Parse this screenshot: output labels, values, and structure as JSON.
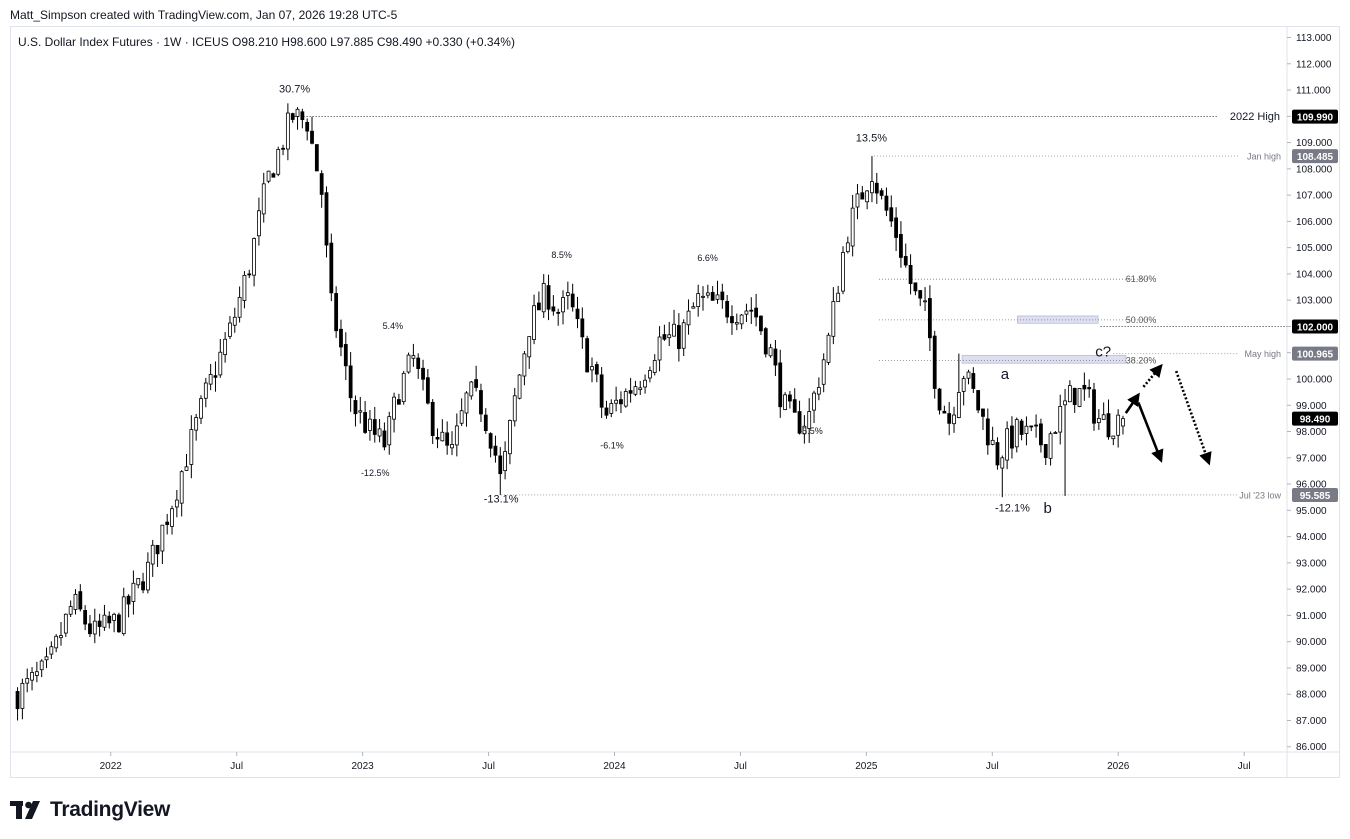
{
  "header": {
    "credit": "Matt_Simpson created with TradingView.com, Jan 07, 2026 19:28 UTC-5",
    "legend": "U.S. Dollar Index Futures · 1W · ICEUS  O98.210  H98.600  L97.885  C98.490  +0.330 (+0.34%)"
  },
  "brand": {
    "name": "TradingView",
    "icon": "tradingview-logo-icon"
  },
  "colors": {
    "up": "#ffffff",
    "down": "#000000",
    "line": "#131722",
    "badge_dark": "#000000",
    "badge_grey": "#787b86",
    "fib_zone": "#d1d4ec"
  },
  "chart_data": {
    "type": "candlestick",
    "timeframe": "1W",
    "ylim": [
      85.8,
      113.4
    ],
    "y_ticks": [
      86.0,
      87.0,
      88.0,
      89.0,
      90.0,
      91.0,
      92.0,
      93.0,
      94.0,
      95.0,
      96.0,
      97.0,
      98.0,
      99.0,
      100.0,
      101.0,
      102.0,
      103.0,
      104.0,
      105.0,
      106.0,
      107.0,
      108.0,
      109.0,
      110.0,
      111.0,
      112.0,
      113.0
    ],
    "x_ticks": [
      {
        "label": "2022",
        "t": 2022.0
      },
      {
        "label": "Jul",
        "t": 2022.5
      },
      {
        "label": "2023",
        "t": 2023.0
      },
      {
        "label": "Jul",
        "t": 2023.5
      },
      {
        "label": "2024",
        "t": 2024.0
      },
      {
        "label": "Jul",
        "t": 2024.5
      },
      {
        "label": "2025",
        "t": 2025.0
      },
      {
        "label": "Jul",
        "t": 2025.5
      },
      {
        "label": "2026",
        "t": 2026.0
      },
      {
        "label": "Jul",
        "t": 2026.5
      }
    ],
    "path_points": [
      [
        2021.63,
        88.0
      ],
      [
        2021.75,
        89.0
      ],
      [
        2021.85,
        91.5
      ],
      [
        2021.93,
        90.3
      ],
      [
        2022.03,
        90.8
      ],
      [
        2022.15,
        92.8
      ],
      [
        2022.25,
        95.5
      ],
      [
        2022.38,
        99.5
      ],
      [
        2022.48,
        102.0
      ],
      [
        2022.55,
        104.3
      ],
      [
        2022.62,
        107.5
      ],
      [
        2022.72,
        110.0
      ],
      [
        2022.78,
        109.8
      ],
      [
        2022.84,
        107.0
      ],
      [
        2022.87,
        103.0
      ],
      [
        2022.9,
        101.8
      ],
      [
        2022.96,
        99.0
      ],
      [
        2023.03,
        98.0
      ],
      [
        2023.09,
        97.5
      ],
      [
        2023.14,
        99.5
      ],
      [
        2023.2,
        100.8
      ],
      [
        2023.27,
        98.5
      ],
      [
        2023.35,
        97.0
      ],
      [
        2023.42,
        99.5
      ],
      [
        2023.47,
        99.0
      ],
      [
        2023.52,
        97.5
      ],
      [
        2023.55,
        96.0
      ],
      [
        2023.6,
        99.0
      ],
      [
        2023.66,
        102.0
      ],
      [
        2023.73,
        103.3
      ],
      [
        2023.78,
        102.5
      ],
      [
        2023.82,
        103.0
      ],
      [
        2023.88,
        101.0
      ],
      [
        2023.92,
        100.2
      ],
      [
        2023.96,
        98.5
      ],
      [
        2024.0,
        99.0
      ],
      [
        2024.1,
        100.0
      ],
      [
        2024.18,
        101.5
      ],
      [
        2024.26,
        101.6
      ],
      [
        2024.33,
        103.0
      ],
      [
        2024.41,
        102.8
      ],
      [
        2024.48,
        102.6
      ],
      [
        2024.55,
        102.7
      ],
      [
        2024.62,
        101.0
      ],
      [
        2024.67,
        99.0
      ],
      [
        2024.72,
        98.3
      ],
      [
        2024.77,
        98.5
      ],
      [
        2024.85,
        101.5
      ],
      [
        2024.92,
        105.5
      ],
      [
        2024.98,
        107.0
      ],
      [
        2025.02,
        108.0
      ],
      [
        2025.06,
        106.8
      ],
      [
        2025.12,
        105.5
      ],
      [
        2025.17,
        103.8
      ],
      [
        2025.2,
        103.0
      ],
      [
        2025.24,
        102.4
      ],
      [
        2025.28,
        99.5
      ],
      [
        2025.33,
        98.4
      ],
      [
        2025.38,
        100.4
      ],
      [
        2025.43,
        99.3
      ],
      [
        2025.48,
        98.0
      ],
      [
        2025.52,
        97.0
      ],
      [
        2025.55,
        97.5
      ],
      [
        2025.6,
        98.0
      ],
      [
        2025.66,
        97.8
      ],
      [
        2025.71,
        97.5
      ],
      [
        2025.76,
        98.5
      ],
      [
        2025.82,
        99.5
      ],
      [
        2025.87,
        99.4
      ],
      [
        2025.92,
        98.5
      ],
      [
        2025.96,
        98.3
      ],
      [
        2026.02,
        98.5
      ]
    ],
    "lows_extra": [
      [
        2021.63,
        87.0
      ],
      [
        2025.54,
        95.5
      ],
      [
        2025.79,
        95.55
      ]
    ],
    "levels": [
      {
        "name": "2022 High",
        "value": 109.99,
        "badge": "109.990",
        "label": "2022 High",
        "start": 2022.73,
        "style": "dark"
      },
      {
        "name": "Jan high",
        "value": 108.485,
        "badge": "108.485",
        "label": "Jan high",
        "start": 2025.03,
        "style": "grey"
      },
      {
        "name": "Ref 102",
        "value": 102.0,
        "badge": "102.000",
        "label": "",
        "start": 2025.93,
        "style": "dark"
      },
      {
        "name": "May high",
        "value": 100.965,
        "badge": "100.965",
        "label": "May high",
        "start": 2025.98,
        "style": "grey"
      },
      {
        "name": "current",
        "value": 98.49,
        "badge": "98.490",
        "label": "",
        "start": null,
        "style": "dark"
      },
      {
        "name": "Jul '23 low",
        "value": 95.585,
        "badge": "95.585",
        "label": "Jul '23 low",
        "start": 2023.55,
        "style": "grey"
      }
    ],
    "fib_levels": [
      {
        "label": "61.80%",
        "value": 103.8
      },
      {
        "label": "50.00%",
        "value": 102.25
      },
      {
        "label": "38.20%",
        "value": 100.7
      }
    ],
    "fib_start": 2025.05,
    "zones": [
      {
        "t0": 2025.6,
        "t1": 2025.92,
        "v_low": 102.12,
        "v_high": 102.4
      },
      {
        "t0": 2025.38,
        "t1": 2026.03,
        "v_low": 100.6,
        "v_high": 100.9
      }
    ],
    "annotations": [
      {
        "text": "30.7%",
        "t": 2022.73,
        "v": 110.9,
        "size": 11
      },
      {
        "text": "5.4%",
        "t": 2023.12,
        "v": 101.9,
        "size": 9
      },
      {
        "text": "-12.5%",
        "t": 2023.05,
        "v": 96.3,
        "size": 9
      },
      {
        "text": "-13.1%",
        "t": 2023.55,
        "v": 95.3,
        "size": 11
      },
      {
        "text": "8.5%",
        "t": 2023.79,
        "v": 104.6,
        "size": 9
      },
      {
        "text": "-6.1%",
        "t": 2023.99,
        "v": 97.35,
        "size": 9
      },
      {
        "text": "6.6%",
        "t": 2024.37,
        "v": 104.5,
        "size": 9
      },
      {
        "text": "-5.5%",
        "t": 2024.78,
        "v": 97.9,
        "size": 9
      },
      {
        "text": "13.5%",
        "t": 2025.02,
        "v": 109.05,
        "size": 11
      },
      {
        "text": "a",
        "t": 2025.55,
        "v": 100.0,
        "size": 15
      },
      {
        "text": "c?",
        "t": 2025.94,
        "v": 100.85,
        "size": 15
      },
      {
        "text": "-12.1%",
        "t": 2025.58,
        "v": 94.95,
        "size": 11
      },
      {
        "text": "b",
        "t": 2025.72,
        "v": 94.9,
        "size": 15
      }
    ],
    "arrows": [
      {
        "t0": 2026.03,
        "v0": 98.7,
        "t1": 2026.08,
        "v1": 99.4,
        "dashed": false
      },
      {
        "t0": 2026.08,
        "v0": 99.1,
        "t1": 2026.17,
        "v1": 96.9,
        "dashed": false
      },
      {
        "t0": 2026.1,
        "v0": 99.7,
        "t1": 2026.17,
        "v1": 100.5,
        "dashed": true
      },
      {
        "t0": 2026.23,
        "v0": 100.3,
        "t1": 2026.36,
        "v1": 96.8,
        "dashed": true
      }
    ]
  }
}
